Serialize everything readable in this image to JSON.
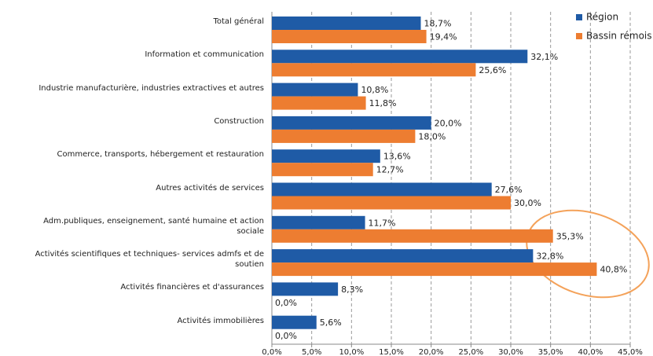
{
  "chart_data": {
    "type": "hbar",
    "categories": [
      "Total général",
      "Information et communication",
      "Industrie manufacturière, industries extractives et autres",
      "Construction",
      "Commerce, transports, hébergement et restauration",
      "Autres activités de services",
      "Adm.publiques, enseignement, santé humaine et action sociale",
      "Activités scientifiques et techniques- services admfs et de soutien",
      "Activités financières et d'assurances",
      "Activités immobilières"
    ],
    "series": [
      {
        "name": "Région",
        "color": "#1f5ba6",
        "values": [
          18.7,
          32.1,
          10.8,
          20.0,
          13.6,
          27.6,
          11.7,
          32.8,
          8.3,
          5.6
        ],
        "value_labels": [
          "18,7%",
          "32,1%",
          "10,8%",
          "20,0%",
          "13,6%",
          "27,6%",
          "11,7%",
          "32,8%",
          "8,3%",
          "5,6%"
        ]
      },
      {
        "name": "Bassin rémois",
        "color": "#ed7d31",
        "values": [
          19.4,
          25.6,
          11.8,
          18.0,
          12.7,
          30.0,
          35.3,
          40.8,
          0.0,
          0.0
        ],
        "value_labels": [
          "19,4%",
          "25,6%",
          "11,8%",
          "18,0%",
          "12,7%",
          "30,0%",
          "35,3%",
          "40,8%",
          "0,0%",
          "0,0%"
        ]
      }
    ],
    "xlim": [
      0,
      45
    ],
    "xticks": [
      {
        "value": 0,
        "label": "0,0%"
      },
      {
        "value": 5,
        "label": "5,0%"
      },
      {
        "value": 10,
        "label": "10,0%"
      },
      {
        "value": 15,
        "label": "15,0%"
      },
      {
        "value": 20,
        "label": "20,0%"
      },
      {
        "value": 25,
        "label": "25,0%"
      },
      {
        "value": 30,
        "label": "30,0%"
      },
      {
        "value": 35,
        "label": "35,0%"
      },
      {
        "value": 40,
        "label": "40,0%"
      },
      {
        "value": 45,
        "label": "45,0%"
      }
    ],
    "grid": true,
    "legend": "top-right"
  }
}
